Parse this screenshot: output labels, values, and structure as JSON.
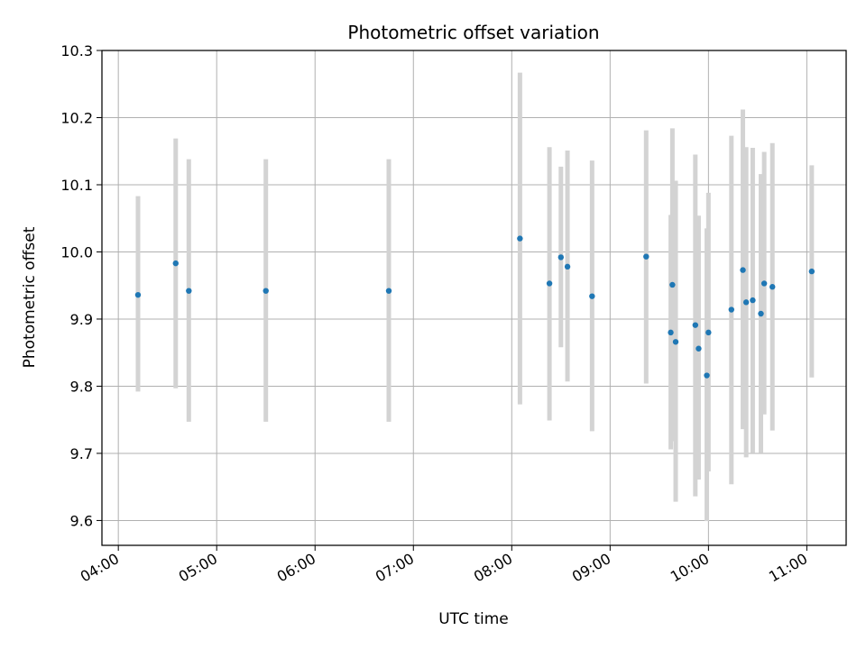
{
  "chart_data": {
    "type": "scatter",
    "title": "Photometric offset variation",
    "xlabel": "UTC time",
    "ylabel": "Photometric offset",
    "x_unit": "hours (UTC)",
    "xlim": [
      "03:50",
      "11:24"
    ],
    "ylim": [
      9.563,
      10.3
    ],
    "x_ticks": [
      "04:00",
      "05:00",
      "06:00",
      "07:00",
      "08:00",
      "09:00",
      "10:00",
      "11:00"
    ],
    "y_ticks": [
      "9.6",
      "9.7",
      "9.8",
      "9.9",
      "10.0",
      "10.1",
      "10.2",
      "10.3"
    ],
    "grid": true,
    "marker_color": "#1f77b4",
    "errorbar_color": "#d3d3d3",
    "points": [
      {
        "x": "04:12",
        "y": 9.936,
        "yerr_low": 9.792,
        "yerr_high": 10.083
      },
      {
        "x": "04:35",
        "y": 9.983,
        "yerr_low": 9.797,
        "yerr_high": 10.169
      },
      {
        "x": "04:43",
        "y": 9.942,
        "yerr_low": 9.747,
        "yerr_high": 10.138
      },
      {
        "x": "05:30",
        "y": 9.942,
        "yerr_low": 9.747,
        "yerr_high": 10.138
      },
      {
        "x": "06:45",
        "y": 9.942,
        "yerr_low": 9.747,
        "yerr_high": 10.138
      },
      {
        "x": "08:05",
        "y": 10.02,
        "yerr_low": 9.773,
        "yerr_high": 10.267
      },
      {
        "x": "08:23",
        "y": 9.953,
        "yerr_low": 9.749,
        "yerr_high": 10.156
      },
      {
        "x": "08:30",
        "y": 9.992,
        "yerr_low": 9.858,
        "yerr_high": 10.127
      },
      {
        "x": "08:34",
        "y": 9.978,
        "yerr_low": 9.807,
        "yerr_high": 10.151
      },
      {
        "x": "08:49",
        "y": 9.934,
        "yerr_low": 9.733,
        "yerr_high": 10.136
      },
      {
        "x": "09:22",
        "y": 9.993,
        "yerr_low": 9.804,
        "yerr_high": 10.181
      },
      {
        "x": "09:37",
        "y": 9.88,
        "yerr_low": 9.706,
        "yerr_high": 10.055
      },
      {
        "x": "09:38",
        "y": 9.951,
        "yerr_low": 9.718,
        "yerr_high": 10.184
      },
      {
        "x": "09:40",
        "y": 9.866,
        "yerr_low": 9.628,
        "yerr_high": 10.106
      },
      {
        "x": "09:52",
        "y": 9.891,
        "yerr_low": 9.636,
        "yerr_high": 10.145
      },
      {
        "x": "09:54",
        "y": 9.856,
        "yerr_low": 9.661,
        "yerr_high": 10.054
      },
      {
        "x": "09:59",
        "y": 9.816,
        "yerr_low": 9.599,
        "yerr_high": 10.035
      },
      {
        "x": "10:00",
        "y": 9.88,
        "yerr_low": 9.673,
        "yerr_high": 10.088
      },
      {
        "x": "10:14",
        "y": 9.914,
        "yerr_low": 9.654,
        "yerr_high": 10.173
      },
      {
        "x": "10:21",
        "y": 9.973,
        "yerr_low": 9.736,
        "yerr_high": 10.212
      },
      {
        "x": "10:23",
        "y": 9.925,
        "yerr_low": 9.694,
        "yerr_high": 10.156
      },
      {
        "x": "10:27",
        "y": 9.928,
        "yerr_low": 9.701,
        "yerr_high": 10.155
      },
      {
        "x": "10:32",
        "y": 9.908,
        "yerr_low": 9.701,
        "yerr_high": 10.116
      },
      {
        "x": "10:34",
        "y": 9.953,
        "yerr_low": 9.758,
        "yerr_high": 10.149
      },
      {
        "x": "10:39",
        "y": 9.948,
        "yerr_low": 9.734,
        "yerr_high": 10.162
      },
      {
        "x": "11:03",
        "y": 9.971,
        "yerr_low": 9.813,
        "yerr_high": 10.129
      }
    ]
  }
}
